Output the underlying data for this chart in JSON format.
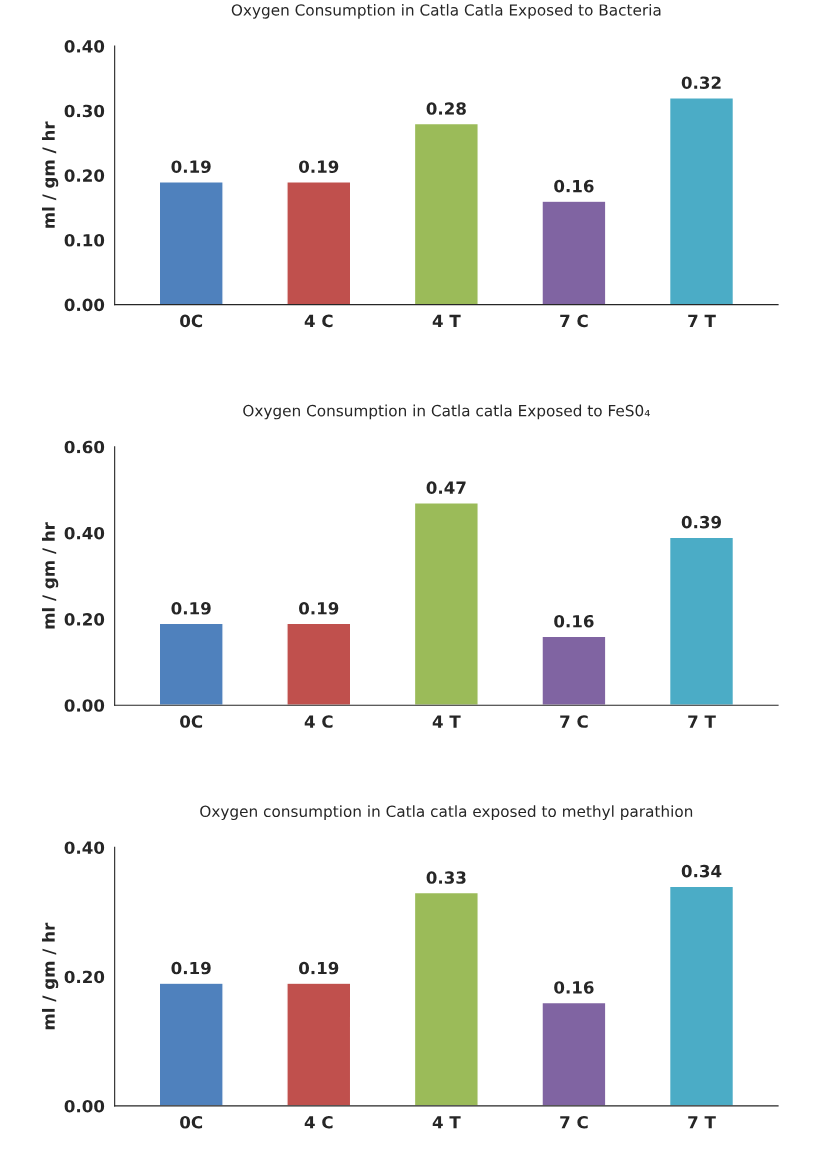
{
  "chart_data": [
    {
      "type": "bar",
      "title": "Oxygen Consumption in Catla Catla Exposed to Bacteria",
      "ylabel": "ml / gm / hr",
      "categories": [
        "0C",
        "4 C",
        "4 T",
        "7 C",
        "7 T"
      ],
      "values": [
        0.19,
        0.19,
        0.28,
        0.16,
        0.32
      ],
      "colors": [
        "#4f81bd",
        "#c0504d",
        "#9bbb59",
        "#8064a2",
        "#4bacc6"
      ],
      "ylim": [
        0,
        0.4
      ],
      "yticks": [
        {
          "value": 0,
          "label": "0.00"
        },
        {
          "value": 0.1,
          "label": "0.10"
        },
        {
          "value": 0.2,
          "label": "0.20"
        },
        {
          "value": 0.3,
          "label": "0.30"
        },
        {
          "value": 0.4,
          "label": "0.40"
        }
      ],
      "data_labels": true,
      "grid": false,
      "legend": false
    },
    {
      "type": "bar",
      "title": "Oxygen Consumption in Catla catla Exposed to FeS0₄",
      "ylabel": "ml / gm / hr",
      "categories": [
        "0C",
        "4 C",
        "4 T",
        "7 C",
        "7 T"
      ],
      "values": [
        0.19,
        0.19,
        0.47,
        0.16,
        0.39
      ],
      "colors": [
        "#4f81bd",
        "#c0504d",
        "#9bbb59",
        "#8064a2",
        "#4bacc6"
      ],
      "ylim": [
        0,
        0.6
      ],
      "yticks": [
        {
          "value": 0,
          "label": "0.00"
        },
        {
          "value": 0.2,
          "label": "0.20"
        },
        {
          "value": 0.4,
          "label": "0.40"
        },
        {
          "value": 0.6,
          "label": "0.60"
        }
      ],
      "data_labels": true,
      "grid": false,
      "legend": false
    },
    {
      "type": "bar",
      "title": "Oxygen consumption in Catla catla exposed to methyl parathion",
      "ylabel": "ml / gm / hr",
      "categories": [
        "0C",
        "4 C",
        "4 T",
        "7 C",
        "7 T"
      ],
      "values": [
        0.19,
        0.19,
        0.33,
        0.16,
        0.34
      ],
      "colors": [
        "#4f81bd",
        "#c0504d",
        "#9bbb59",
        "#8064a2",
        "#4bacc6"
      ],
      "ylim": [
        0,
        0.4
      ],
      "yticks": [
        {
          "value": 0,
          "label": "0.00"
        },
        {
          "value": 0.2,
          "label": "0.20"
        },
        {
          "value": 0.4,
          "label": "0.40"
        }
      ],
      "data_labels": true,
      "grid": false,
      "legend": false
    }
  ]
}
